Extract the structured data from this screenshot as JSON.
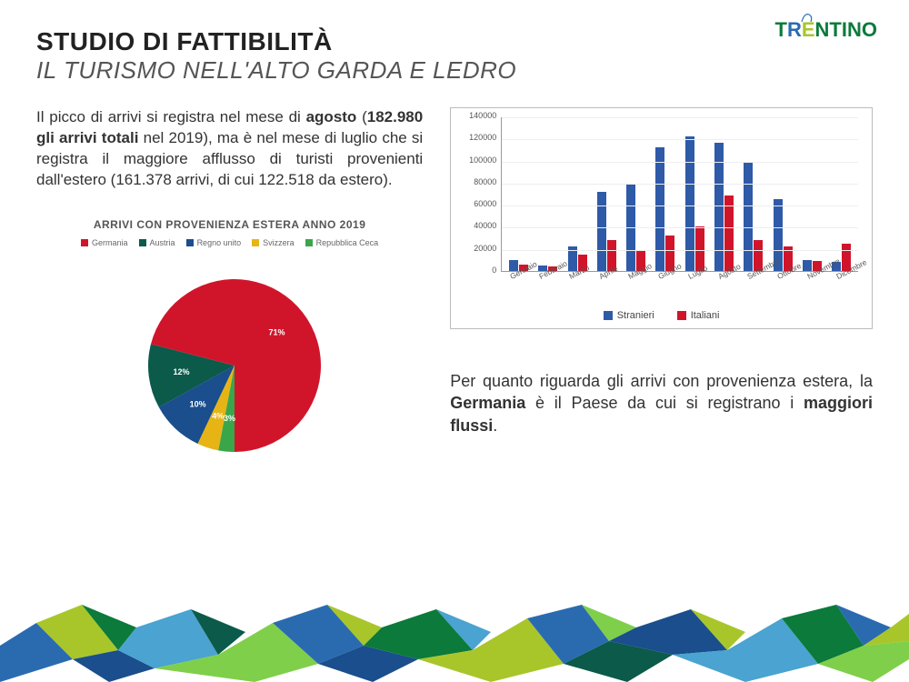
{
  "header": {
    "title_main": "STUDIO DI FATTIBILITÀ",
    "title_sub": "IL TURISMO NELL'ALTO GARDA E LEDRO",
    "logo_text": "TRENTINO"
  },
  "paragraph1_parts": {
    "p1": "Il picco di arrivi si registra nel mese di ",
    "b1": "agosto",
    "p2": " (",
    "b2": "182.980 gli arrivi totali",
    "p3": " nel 2019), ma è nel mese di luglio che si registra il maggiore afflusso di turisti provenienti dall'estero (161.378 arrivi, di cui 122.518 da estero)."
  },
  "paragraph2_parts": {
    "p1": "Per quanto riguarda gli arrivi con provenienza estera, la ",
    "b1": "Germania",
    "p2": " è il Paese da cui si registrano i ",
    "b2": "maggiori flussi",
    "p3": "."
  },
  "pie_chart": {
    "title": "ARRIVI CON PROVENIENZA ESTERA ANNO 2019",
    "slices": [
      {
        "label": "Germania",
        "value": 71,
        "color": "#d0152b"
      },
      {
        "label": "Austria",
        "value": 12,
        "color": "#0b5a4a"
      },
      {
        "label": "Regno unito",
        "value": 10,
        "color": "#1a4e8c"
      },
      {
        "label": "Svizzera",
        "value": 4,
        "color": "#e7b416"
      },
      {
        "label": "Repubblica Ceca",
        "value": 3,
        "color": "#3aa64a"
      }
    ],
    "label_font_color": "#ffffff",
    "title_color": "#555555",
    "title_fontsize": 12
  },
  "bar_chart": {
    "type": "grouped-bar",
    "ylim": [
      0,
      140000
    ],
    "ytick_step": 20000,
    "y_ticks": [
      "0",
      "20000",
      "40000",
      "60000",
      "80000",
      "100000",
      "120000",
      "140000"
    ],
    "series": [
      {
        "name": "Stranieri",
        "color": "#2e5aa8"
      },
      {
        "name": "Italiani",
        "color": "#d0152b"
      }
    ],
    "months": [
      "Gennaio",
      "Febbraio",
      "Marzo",
      "Aprile",
      "Maggio",
      "Giugno",
      "Luglio",
      "Agosto",
      "Settembre",
      "Ottobre",
      "Novembre",
      "Dicembre"
    ],
    "stranieri": [
      10000,
      5000,
      22000,
      72000,
      78000,
      112000,
      122000,
      116000,
      98000,
      65000,
      10000,
      8000
    ],
    "italiani": [
      6000,
      4000,
      15000,
      28000,
      18000,
      32000,
      40000,
      68000,
      28000,
      22000,
      9000,
      25000
    ],
    "grid_color": "#eeeeee",
    "axis_color": "#999999",
    "font_color": "#555555"
  },
  "footer_colors": [
    "#0b7a3b",
    "#2a6bb0",
    "#a8c62a",
    "#1a4e8c",
    "#4aa3d0",
    "#0b5a4a",
    "#7fcf4a"
  ]
}
